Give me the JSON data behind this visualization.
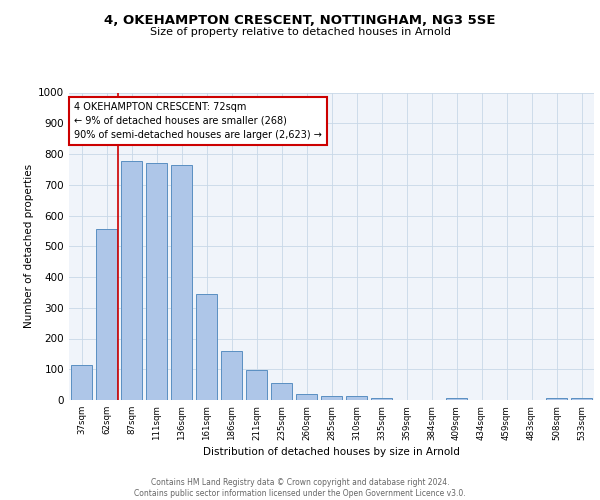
{
  "title1": "4, OKEHAMPTON CRESCENT, NOTTINGHAM, NG3 5SE",
  "title2": "Size of property relative to detached houses in Arnold",
  "xlabel": "Distribution of detached houses by size in Arnold",
  "ylabel": "Number of detached properties",
  "categories": [
    "37sqm",
    "62sqm",
    "87sqm",
    "111sqm",
    "136sqm",
    "161sqm",
    "186sqm",
    "211sqm",
    "235sqm",
    "260sqm",
    "285sqm",
    "310sqm",
    "335sqm",
    "359sqm",
    "384sqm",
    "409sqm",
    "434sqm",
    "459sqm",
    "483sqm",
    "508sqm",
    "533sqm"
  ],
  "values": [
    115,
    555,
    778,
    770,
    765,
    345,
    160,
    97,
    55,
    20,
    14,
    14,
    8,
    0,
    0,
    8,
    0,
    0,
    0,
    8,
    8
  ],
  "bar_color": "#aec6e8",
  "bar_edge_color": "#5a8fc2",
  "grid_color": "#c8d8e8",
  "background_color": "#f0f4fa",
  "vline_color": "#cc0000",
  "annotation_text": "4 OKEHAMPTON CRESCENT: 72sqm\n← 9% of detached houses are smaller (268)\n90% of semi-detached houses are larger (2,623) →",
  "annotation_box_color": "#ffffff",
  "annotation_box_edge": "#cc0000",
  "footer_text": "Contains HM Land Registry data © Crown copyright and database right 2024.\nContains public sector information licensed under the Open Government Licence v3.0.",
  "ylim": [
    0,
    1000
  ],
  "yticks": [
    0,
    100,
    200,
    300,
    400,
    500,
    600,
    700,
    800,
    900,
    1000
  ]
}
